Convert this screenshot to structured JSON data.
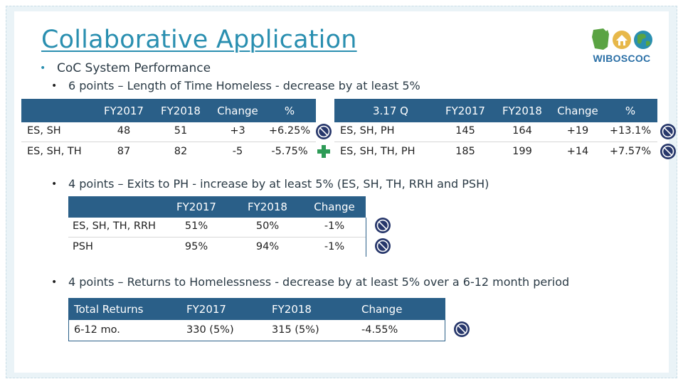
{
  "title": "Collaborative Application",
  "logo": {
    "text": "WIBOSCOC",
    "icon": "wisconsin-house-globe-logo"
  },
  "bullet_main": "CoC System Performance",
  "section1": {
    "heading": "6 points – Length of Time Homeless - decrease by at least 5%",
    "left_table": {
      "columns": [
        "",
        "FY2017",
        "FY2018",
        "Change",
        "%"
      ],
      "rows": [
        {
          "label": "ES, SH",
          "fy2017": "48",
          "fy2018": "51",
          "change": "+3",
          "pct": "+6.25%"
        },
        {
          "label": "ES, SH, TH",
          "fy2017": "87",
          "fy2018": "82",
          "change": "-5",
          "pct": "-5.75%"
        }
      ]
    },
    "right_table": {
      "columns": [
        "3.17 Q",
        "FY2017",
        "FY2018",
        "Change",
        "%"
      ],
      "rows": [
        {
          "label": "ES, SH, PH",
          "fy2017": "145",
          "fy2018": "164",
          "change": "+19",
          "pct": "+13.1%"
        },
        {
          "label": "ES, SH, TH, PH",
          "fy2017": "185",
          "fy2018": "199",
          "change": "+14",
          "pct": "+7.57%"
        }
      ]
    }
  },
  "section2": {
    "heading": "4 points – Exits to PH - increase by at least 5% (ES, SH, TH, RRH and PSH)",
    "columns": [
      "",
      "FY2017",
      "FY2018",
      "Change"
    ],
    "rows": [
      {
        "label": "ES, SH, TH, RRH",
        "fy2017": "51%",
        "fy2018": "50%",
        "change": "-1%"
      },
      {
        "label": "PSH",
        "fy2017": "95%",
        "fy2018": "94%",
        "change": "-1%"
      }
    ]
  },
  "section3": {
    "heading": "4 points – Returns to Homelessness - decrease by at least 5% over a 6-12 month period",
    "columns": [
      "Total Returns",
      "FY2017",
      "FY2018",
      "Change"
    ],
    "rows": [
      {
        "label": "6-12 mo.",
        "fy2017": "330 (5%)",
        "fy2018": "315 (5%)",
        "change": "-4.55%"
      }
    ]
  },
  "colors": {
    "accent": "#2a8fb0",
    "header_blue": "#2a5f88",
    "icon_navy": "#27376b",
    "icon_plus": "#2e9b57",
    "frame": "#eaf3f7"
  },
  "icons": {
    "not_met": "prohibited-icon",
    "met": "plus-icon"
  }
}
